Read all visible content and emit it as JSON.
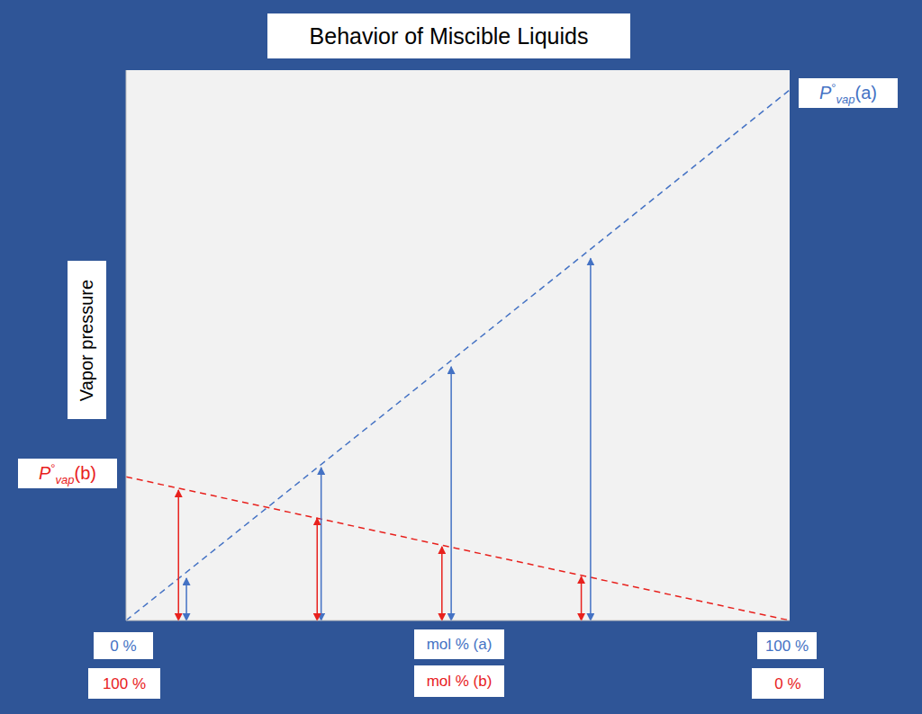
{
  "chart_data": {
    "type": "line",
    "title": "Behavior of Miscible Liquids",
    "ylabel": "Vapor pressure",
    "xlabel": "mol % (a)",
    "xlabel_b": "mol % (b)",
    "xlim": [
      0,
      100
    ],
    "xticks": [
      {
        "value": 0,
        "label": "0 %"
      },
      {
        "value": 100,
        "label": "100 %"
      }
    ],
    "xticks_b": [
      {
        "value": 0,
        "label": "100 %"
      },
      {
        "value": 100,
        "label": "0 %"
      }
    ],
    "ylim": [
      0,
      100
    ],
    "tick_labels": "x",
    "grid": false,
    "series": [
      {
        "label": [
          "P",
          "°",
          "vap",
          "(a)"
        ],
        "color": "#4472c4",
        "line_style": "dashed",
        "x": [
          0,
          100
        ],
        "values": [
          0,
          96.4
        ],
        "arrows_x": [
          9.1,
          29.4,
          49,
          70
        ],
        "arrows": [
          7.7,
          27.8,
          46.1,
          65.8
        ]
      },
      {
        "label": [
          "P",
          "°",
          "vap",
          "(b)"
        ],
        "color": "#e8211d",
        "line_style": "dashed",
        "x": [
          0,
          100
        ],
        "values": [
          26.1,
          0
        ],
        "arrows_x": [
          7.9,
          28.8,
          47.6,
          68.6
        ],
        "arrows": [
          23.7,
          18.6,
          13.4,
          8.0
        ]
      }
    ]
  }
}
